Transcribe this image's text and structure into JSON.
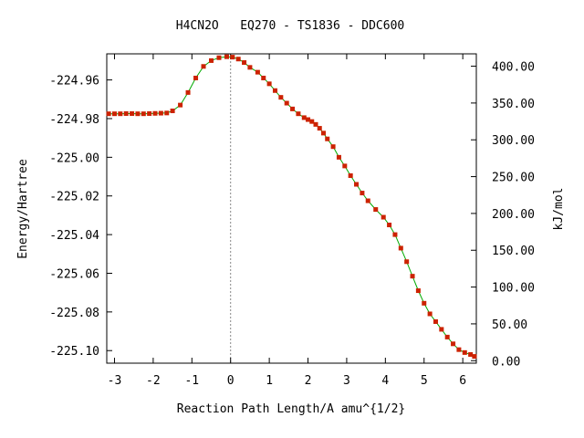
{
  "chart_data": {
    "type": "line",
    "title": "H4CN2O   EQ270 - TS1836 - DDC600",
    "xlabel": "Reaction Path Length/A amu^{1/2}",
    "ylabel": "Energy/Hartree",
    "y2label": "kJ/mol",
    "xlim": [
      -3.2,
      6.35
    ],
    "ylim": [
      -225.1065,
      -224.9465
    ],
    "y2lim": [
      -3.4,
      416.8
    ],
    "x_ticks": [
      -3,
      -2,
      -1,
      0,
      1,
      2,
      3,
      4,
      5,
      6
    ],
    "x_tick_labels": [
      "-3",
      "-2",
      "-1",
      "0",
      "1",
      "2",
      "3",
      "4",
      "5",
      "6"
    ],
    "y_ticks": [
      -224.96,
      -224.98,
      -225.0,
      -225.02,
      -225.04,
      -225.06,
      -225.08,
      -225.1
    ],
    "y_tick_labels": [
      "-224.96",
      "-224.98",
      "-225.00",
      "-225.02",
      "-225.04",
      "-225.06",
      "-225.08",
      "-225.10"
    ],
    "y2_ticks": [
      400,
      350,
      300,
      250,
      200,
      150,
      100,
      50,
      0
    ],
    "y2_tick_labels": [
      "400.00",
      "350.00",
      "300.00",
      "250.00",
      "200.00",
      "150.00",
      "100.00",
      "50.00",
      "0.00"
    ],
    "ts_x": 0,
    "grid": false,
    "colors": {
      "line": "#00aa00",
      "marker": "#cc2200",
      "ts_line": "#888888"
    },
    "series": [
      {
        "x": [
          -3.15,
          -3.0,
          -2.85,
          -2.7,
          -2.55,
          -2.4,
          -2.25,
          -2.1,
          -1.95,
          -1.8,
          -1.65,
          -1.5,
          -1.3,
          -1.1,
          -0.9,
          -0.7,
          -0.5,
          -0.3,
          -0.1,
          0.05,
          0.2,
          0.35,
          0.5,
          0.7,
          0.85,
          1.0,
          1.15,
          1.3,
          1.45,
          1.6,
          1.75,
          1.9,
          2.0,
          2.1,
          2.2,
          2.3,
          2.4,
          2.5,
          2.65,
          2.8,
          2.95,
          3.1,
          3.25,
          3.4,
          3.55,
          3.75,
          3.95,
          4.1,
          4.25,
          4.4,
          4.55,
          4.7,
          4.85,
          5.0,
          5.15,
          5.3,
          5.45,
          5.6,
          5.75,
          5.9,
          6.05,
          6.2,
          6.3
        ],
        "y": [
          -224.9775,
          -224.9775,
          -224.9775,
          -224.9774,
          -224.9774,
          -224.9775,
          -224.9775,
          -224.9774,
          -224.9773,
          -224.9772,
          -224.9771,
          -224.976,
          -224.973,
          -224.9665,
          -224.959,
          -224.953,
          -224.95,
          -224.9485,
          -224.948,
          -224.9482,
          -224.9492,
          -224.951,
          -224.9535,
          -224.956,
          -224.959,
          -224.962,
          -224.9655,
          -224.969,
          -224.972,
          -224.975,
          -224.9775,
          -224.9795,
          -224.9805,
          -224.9815,
          -224.983,
          -224.985,
          -224.9875,
          -224.9905,
          -224.9945,
          -225.0,
          -225.0045,
          -225.0095,
          -225.014,
          -225.0185,
          -225.0225,
          -225.027,
          -225.031,
          -225.035,
          -225.04,
          -225.047,
          -225.054,
          -225.0615,
          -225.069,
          -225.0755,
          -225.081,
          -225.085,
          -225.089,
          -225.093,
          -225.0965,
          -225.0995,
          -225.101,
          -225.102,
          -225.103
        ]
      }
    ]
  }
}
